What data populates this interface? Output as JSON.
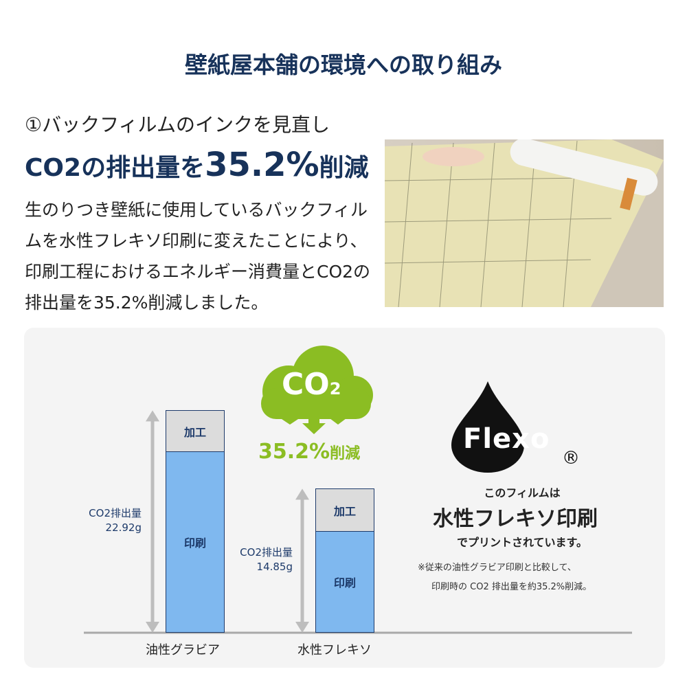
{
  "title": "壁紙屋本舗の環境への取り組み",
  "subtitle": "①バックフィルムのインクを見直し",
  "headline": {
    "pre": "CO2の排出量を",
    "number": "35.2%",
    "post": "削減"
  },
  "body": "生のりつき壁紙に使用しているバックフィルムを水性フレキソ印刷に変えたことにより、印刷工程におけるエネルギー消費量とCO2の排出量を35.2%削減しました。",
  "badge": {
    "co2": "CO",
    "sub": "2",
    "reduction": "35.2%",
    "reduction_suffix": "削減",
    "color": "#8bbd23"
  },
  "flexo": {
    "logo": "Flexo",
    "registered": "®",
    "line1": "このフィルムは",
    "line2": "水性フレキソ印刷",
    "line3": "でプリントされています。",
    "note1": "※従来の油性グラビア印刷と比較して、",
    "note2": "印刷時の CO2 排出量を約35.2%削減。"
  },
  "chart_data": {
    "type": "bar",
    "stacked": true,
    "categories": [
      "油性グラビア",
      "水性フレキソ"
    ],
    "series": [
      {
        "name": "印刷",
        "values": [
          18.7,
          10.5
        ]
      },
      {
        "name": "加工",
        "values": [
          4.22,
          4.35
        ]
      }
    ],
    "totals": [
      {
        "label": "CO2排出量",
        "value": "22.92g"
      },
      {
        "label": "CO2排出量",
        "value": "14.85g"
      }
    ],
    "colors": {
      "印刷": "#7fb8ef",
      "加工": "#dcdcdc"
    }
  }
}
